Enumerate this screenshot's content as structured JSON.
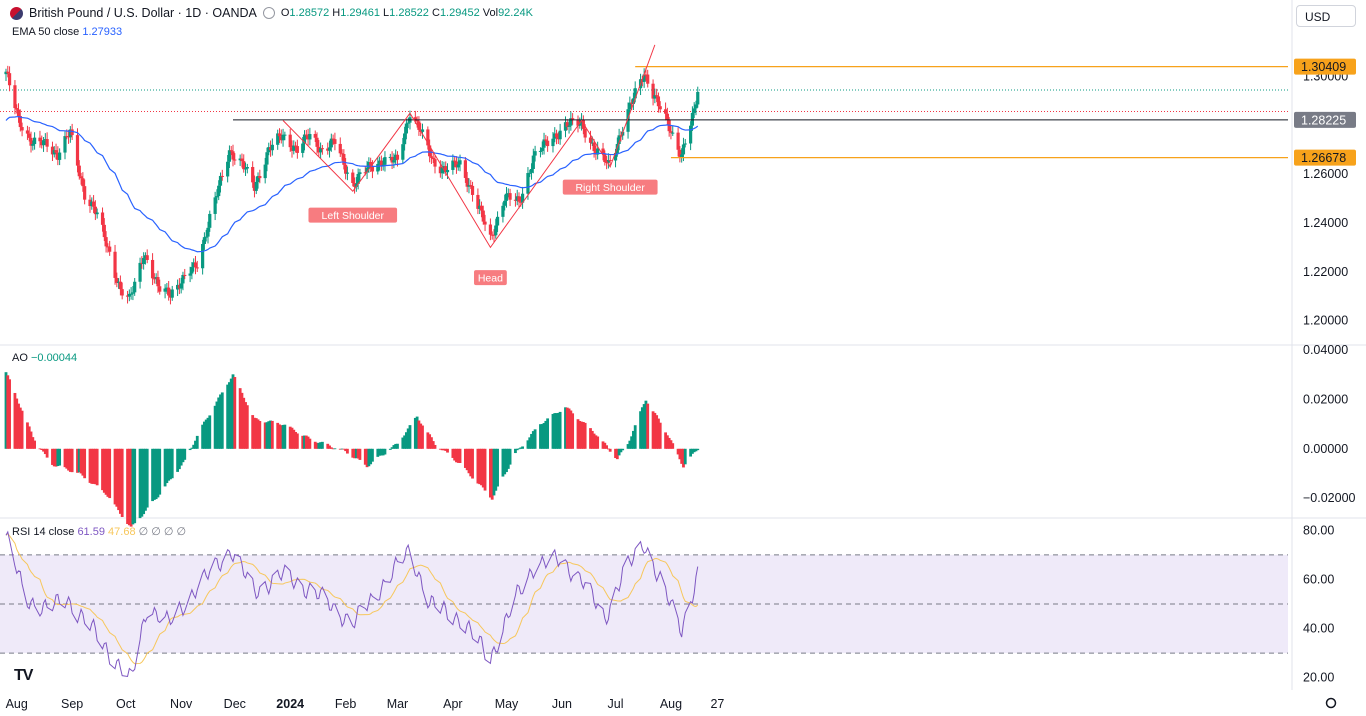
{
  "header": {
    "symbol": "British Pound / U.S. Dollar · 1D · OANDA",
    "o_label": "O",
    "o_value": "1.28572",
    "h_label": "H",
    "h_value": "1.29461",
    "l_label": "L",
    "l_value": "1.28522",
    "c_label": "C",
    "c_value": "1.29452",
    "vol_label": "Vol",
    "vol_value": "92.24K",
    "currency": "USD"
  },
  "indicators": {
    "ema_name": "EMA 50 close",
    "ema_value": "1.27933",
    "ao_name": "AO",
    "ao_value": "−0.00044",
    "rsi_name": "RSI 14 close",
    "rsi_value": "61.59",
    "rsi_ma_value": "47.68",
    "rsi_na": "∅ ∅ ∅ ∅"
  },
  "colors": {
    "up": "#089981",
    "down": "#f23645",
    "ema": "#2962ff",
    "rsi": "#7e57c2",
    "rsi_ma": "#f7c75c",
    "band": "#efeaf9",
    "marker": "#f7a21b",
    "pattern": "#f23645"
  },
  "chart_data": [
    {
      "type": "candlestick",
      "title": "British Pound / U.S. Dollar · 1D · OANDA",
      "ylim": [
        1.19,
        1.315
      ],
      "yticks": [
        "1.30000",
        "1.26000",
        "1.24000",
        "1.22000",
        "1.20000"
      ],
      "xticks": [
        "Aug",
        "Sep",
        "Oct",
        "Nov",
        "Dec",
        "2024",
        "Feb",
        "Mar",
        "Apr",
        "May",
        "Jun",
        "Jul",
        "Aug",
        "27"
      ],
      "anchors": [
        [
          "2023-07-26",
          1.301
        ],
        [
          "2023-08-02",
          1.283
        ],
        [
          "2023-08-10",
          1.272
        ],
        [
          "2023-08-18",
          1.273
        ],
        [
          "2023-08-24",
          1.268
        ],
        [
          "2023-08-31",
          1.277
        ],
        [
          "2023-09-08",
          1.252
        ],
        [
          "2023-09-15",
          1.243
        ],
        [
          "2023-09-22",
          1.228
        ],
        [
          "2023-09-28",
          1.212
        ],
        [
          "2023-10-03",
          1.208
        ],
        [
          "2023-10-11",
          1.228
        ],
        [
          "2023-10-19",
          1.213
        ],
        [
          "2023-10-26",
          1.212
        ],
        [
          "2023-11-02",
          1.216
        ],
        [
          "2023-11-10",
          1.224
        ],
        [
          "2023-11-20",
          1.249
        ],
        [
          "2023-11-28",
          1.27
        ],
        [
          "2023-12-05",
          1.264
        ],
        [
          "2023-12-12",
          1.255
        ],
        [
          "2023-12-20",
          1.27
        ],
        [
          "2023-12-28",
          1.276
        ],
        [
          "2024-01-05",
          1.27
        ],
        [
          "2024-01-12",
          1.276
        ],
        [
          "2024-01-19",
          1.27
        ],
        [
          "2024-01-26",
          1.273
        ],
        [
          "2024-02-05",
          1.256
        ],
        [
          "2024-02-13",
          1.262
        ],
        [
          "2024-02-22",
          1.266
        ],
        [
          "2024-03-01",
          1.265
        ],
        [
          "2024-03-08",
          1.286
        ],
        [
          "2024-03-13",
          1.279
        ],
        [
          "2024-03-21",
          1.265
        ],
        [
          "2024-03-28",
          1.262
        ],
        [
          "2024-04-05",
          1.264
        ],
        [
          "2024-04-12",
          1.253
        ],
        [
          "2024-04-22",
          1.233
        ],
        [
          "2024-04-30",
          1.251
        ],
        [
          "2024-05-08",
          1.248
        ],
        [
          "2024-05-16",
          1.267
        ],
        [
          "2024-05-24",
          1.273
        ],
        [
          "2024-06-03",
          1.28
        ],
        [
          "2024-06-12",
          1.281
        ],
        [
          "2024-06-20",
          1.269
        ],
        [
          "2024-06-27",
          1.264
        ],
        [
          "2024-07-05",
          1.279
        ],
        [
          "2024-07-12",
          1.293
        ],
        [
          "2024-07-17",
          1.302
        ],
        [
          "2024-07-25",
          1.288
        ],
        [
          "2024-08-01",
          1.278
        ],
        [
          "2024-08-07",
          1.268
        ],
        [
          "2024-08-14",
          1.285
        ],
        [
          "2024-08-16",
          1.2945
        ]
      ],
      "levels": [
        {
          "label": "1.30409",
          "value": 1.30409
        },
        {
          "label": "1.28225",
          "value": 1.28225
        },
        {
          "label": "1.26678",
          "value": 1.26678
        }
      ],
      "pattern_labels": [
        "Left Shoulder",
        "Head",
        "Right Shoulder"
      ]
    },
    {
      "type": "bar",
      "title": "AO",
      "ylim": [
        -0.028,
        0.042
      ],
      "yticks": [
        "0.04000",
        "0.02000",
        "0.00000",
        "−0.02000"
      ],
      "anchors": [
        [
          "2023-07-26",
          0.031
        ],
        [
          "2023-08-10",
          0.005
        ],
        [
          "2023-08-20",
          -0.006
        ],
        [
          "2023-09-05",
          -0.01
        ],
        [
          "2023-09-20",
          -0.018
        ],
        [
          "2023-10-04",
          -0.032
        ],
        [
          "2023-10-18",
          -0.02
        ],
        [
          "2023-11-03",
          -0.005
        ],
        [
          "2023-11-12",
          0.008
        ],
        [
          "2023-11-30",
          0.03
        ],
        [
          "2023-12-12",
          0.012
        ],
        [
          "2023-12-28",
          0.01
        ],
        [
          "2024-01-12",
          0.004
        ],
        [
          "2024-02-01",
          -0.001
        ],
        [
          "2024-02-13",
          -0.007
        ],
        [
          "2024-03-01",
          0.002
        ],
        [
          "2024-03-12",
          0.013
        ],
        [
          "2024-03-22",
          0.002
        ],
        [
          "2024-04-05",
          -0.006
        ],
        [
          "2024-04-23",
          -0.02
        ],
        [
          "2024-05-06",
          -0.002
        ],
        [
          "2024-05-20",
          0.01
        ],
        [
          "2024-06-03",
          0.017
        ],
        [
          "2024-06-20",
          0.006
        ],
        [
          "2024-07-02",
          -0.004
        ],
        [
          "2024-07-08",
          0.002
        ],
        [
          "2024-07-18",
          0.02
        ],
        [
          "2024-07-30",
          0.006
        ],
        [
          "2024-08-08",
          -0.007
        ],
        [
          "2024-08-16",
          0.0
        ]
      ]
    },
    {
      "type": "line",
      "title": "RSI 14 close",
      "ylim": [
        15,
        85
      ],
      "yticks": [
        "80.00",
        "60.00",
        "40.00",
        "20.00"
      ],
      "bands": [
        30,
        50,
        70
      ],
      "anchors": [
        [
          "2023-07-26",
          78
        ],
        [
          "2023-08-06",
          52
        ],
        [
          "2023-08-18",
          48
        ],
        [
          "2023-08-29",
          52
        ],
        [
          "2023-09-12",
          40
        ],
        [
          "2023-09-26",
          26
        ],
        [
          "2023-10-04",
          19
        ],
        [
          "2023-10-13",
          49
        ],
        [
          "2023-10-25",
          42
        ],
        [
          "2023-11-09",
          56
        ],
        [
          "2023-11-21",
          66
        ],
        [
          "2023-11-29",
          72
        ],
        [
          "2023-12-12",
          55
        ],
        [
          "2023-12-28",
          62
        ],
        [
          "2024-01-16",
          54
        ],
        [
          "2024-02-05",
          42
        ],
        [
          "2024-02-20",
          56
        ],
        [
          "2024-03-08",
          72
        ],
        [
          "2024-03-19",
          50
        ],
        [
          "2024-04-05",
          44
        ],
        [
          "2024-04-22",
          28
        ],
        [
          "2024-05-06",
          52
        ],
        [
          "2024-05-17",
          66
        ],
        [
          "2024-05-31",
          68
        ],
        [
          "2024-06-12",
          60
        ],
        [
          "2024-06-25",
          44
        ],
        [
          "2024-07-05",
          62
        ],
        [
          "2024-07-17",
          75
        ],
        [
          "2024-07-29",
          54
        ],
        [
          "2024-08-07",
          40
        ],
        [
          "2024-08-16",
          61.59
        ]
      ]
    }
  ]
}
